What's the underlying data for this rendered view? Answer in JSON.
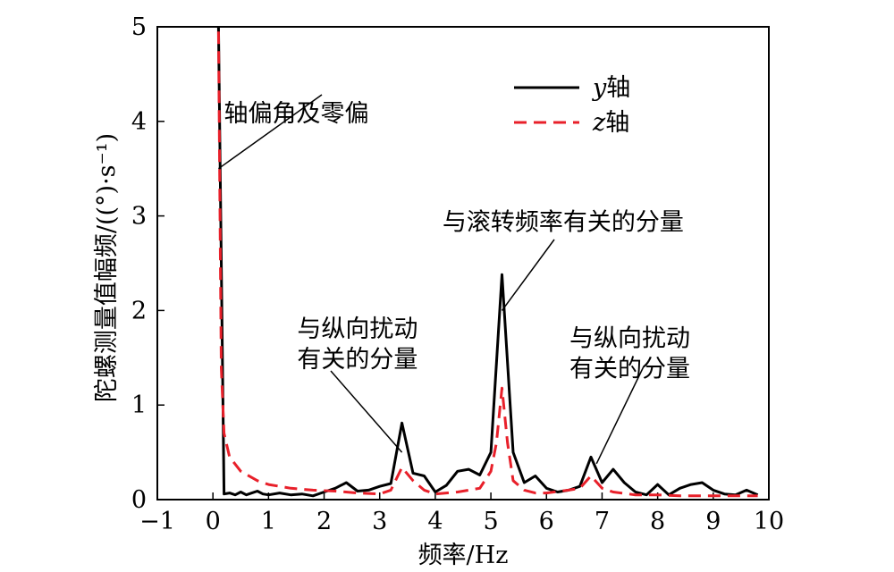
{
  "chart_data": {
    "type": "line",
    "xlabel": "频率/Hz",
    "ylabel": "陀螺测量值幅频/((°)·s⁻¹)",
    "xlim": [
      -1,
      10
    ],
    "ylim": [
      0,
      5
    ],
    "xticks": [
      -1,
      0,
      1,
      2,
      3,
      4,
      5,
      6,
      7,
      8,
      9,
      10
    ],
    "yticks": [
      0,
      1,
      2,
      3,
      4,
      5
    ],
    "grid": false,
    "legend_position": "top-right",
    "series": [
      {
        "name": "y轴",
        "legend_italic": "y",
        "legend_rest": "轴",
        "color": "#000000",
        "style": "solid",
        "x": [
          0.1,
          0.2,
          0.3,
          0.4,
          0.5,
          0.6,
          0.7,
          0.8,
          0.9,
          1.0,
          1.2,
          1.4,
          1.6,
          1.8,
          2.0,
          2.2,
          2.4,
          2.6,
          2.8,
          3.0,
          3.2,
          3.4,
          3.6,
          3.8,
          4.0,
          4.2,
          4.4,
          4.6,
          4.8,
          5.0,
          5.2,
          5.4,
          5.6,
          5.8,
          6.0,
          6.2,
          6.4,
          6.6,
          6.8,
          7.0,
          7.2,
          7.4,
          7.6,
          7.8,
          8.0,
          8.2,
          8.4,
          8.6,
          8.8,
          9.0,
          9.2,
          9.4,
          9.6,
          9.8
        ],
        "y": [
          5.0,
          0.06,
          0.07,
          0.05,
          0.08,
          0.05,
          0.07,
          0.09,
          0.06,
          0.05,
          0.07,
          0.05,
          0.06,
          0.04,
          0.08,
          0.12,
          0.18,
          0.09,
          0.1,
          0.14,
          0.17,
          0.81,
          0.28,
          0.25,
          0.08,
          0.15,
          0.3,
          0.32,
          0.26,
          0.5,
          2.38,
          0.5,
          0.18,
          0.25,
          0.12,
          0.08,
          0.1,
          0.14,
          0.45,
          0.18,
          0.32,
          0.18,
          0.08,
          0.05,
          0.16,
          0.05,
          0.12,
          0.16,
          0.18,
          0.1,
          0.06,
          0.05,
          0.1,
          0.05
        ]
      },
      {
        "name": "z轴",
        "legend_italic": "z",
        "legend_rest": "轴",
        "color": "#e8202a",
        "style": "dashed",
        "x": [
          0.1,
          0.15,
          0.2,
          0.3,
          0.5,
          0.8,
          1.0,
          1.4,
          1.8,
          2.2,
          2.6,
          3.0,
          3.2,
          3.4,
          3.6,
          3.8,
          4.0,
          4.4,
          4.8,
          5.0,
          5.1,
          5.2,
          5.3,
          5.4,
          5.6,
          5.8,
          6.0,
          6.4,
          6.6,
          6.8,
          7.0,
          7.2,
          7.6,
          8.0,
          8.4,
          8.8,
          9.2,
          9.6,
          9.8
        ],
        "y": [
          4.95,
          1.4,
          0.7,
          0.45,
          0.3,
          0.2,
          0.16,
          0.12,
          0.1,
          0.09,
          0.07,
          0.06,
          0.1,
          0.34,
          0.2,
          0.1,
          0.06,
          0.08,
          0.12,
          0.3,
          0.6,
          1.18,
          0.6,
          0.2,
          0.1,
          0.07,
          0.07,
          0.1,
          0.12,
          0.25,
          0.12,
          0.08,
          0.05,
          0.05,
          0.04,
          0.04,
          0.04,
          0.04,
          0.04
        ]
      }
    ],
    "annotations": [
      {
        "id": "zero-bias",
        "lines": [
          "轴偏角及零偏"
        ],
        "point": [
          0.1,
          3.5
        ],
        "text_anchor": [
          1.5,
          4.0
        ]
      },
      {
        "id": "roll-related",
        "lines": [
          "与滚转频率有关的分量"
        ],
        "point": [
          5.2,
          2.0
        ],
        "text_anchor": [
          6.3,
          2.85
        ]
      },
      {
        "id": "long-disturb-1",
        "lines": [
          "与纵向扰动",
          "有关的分量"
        ],
        "point": [
          3.4,
          0.5
        ],
        "text_anchor": [
          2.6,
          1.4
        ]
      },
      {
        "id": "long-disturb-2",
        "lines": [
          "与纵向扰动",
          "有关的分量"
        ],
        "point": [
          6.9,
          0.38
        ],
        "text_anchor": [
          7.5,
          1.3
        ]
      }
    ]
  }
}
